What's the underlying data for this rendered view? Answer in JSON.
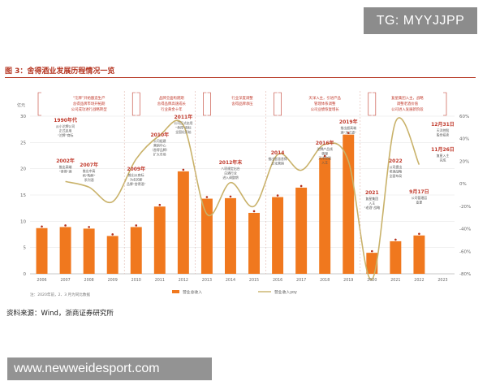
{
  "watermark": "TG: MYYJJPP",
  "figure_title": "图 3：舍得酒业发展历程情况一览",
  "source_note": "资料来源：Wind，浙商证券研究所",
  "footer_url": "www.newweidesport.com",
  "chart_data": {
    "type": "bar",
    "categories": [
      "2006",
      "2007",
      "2008",
      "2009",
      "2010",
      "2011",
      "2012",
      "2013",
      "2014",
      "2015",
      "2016",
      "2017",
      "2018",
      "2019",
      "2020",
      "2021",
      "2022",
      "2023"
    ],
    "series": [
      {
        "name": "营业总收入",
        "type": "bar",
        "color": "#f0781e",
        "values": [
          8.7,
          8.9,
          8.6,
          7.2,
          8.9,
          12.8,
          19.5,
          14.3,
          14.4,
          11.6,
          14.6,
          16.4,
          22.1,
          26.5,
          4.0,
          6.2,
          7.3,
          null
        ]
      },
      {
        "name": "营业收入yoy",
        "type": "line",
        "color": "#c9b26a",
        "values": [
          null,
          2,
          -3,
          -16,
          22,
          43,
          52,
          -27,
          1,
          -20,
          26,
          12,
          35,
          20,
          -85,
          55,
          17,
          null
        ]
      }
    ],
    "ylim_left": [
      0,
      30
    ],
    "yticks_left": [
      "0",
      "5",
      "10",
      "15",
      "20",
      "25",
      "30"
    ],
    "yticks_right": [
      "-80%",
      "-60%",
      "-40%",
      "-20%",
      "0%",
      "20%",
      "40%",
      "60%"
    ],
    "unit_left": "亿元",
    "x_footnote": "注：2020年前，2、3 月为同比数据",
    "legend": [
      "营业总收入",
      "营业收入yoy"
    ],
    "milestones": [
      {
        "year": "1990年代",
        "lines": [
          "从小沱牌公司",
          "正式启用",
          "“沱牌”商标"
        ]
      },
      {
        "year": "2002年",
        "lines": [
          "推出高端",
          "“舍得”酒"
        ]
      },
      {
        "year": "2007年",
        "lines": [
          "推出中高",
          "档“陶醉”",
          "系列酒"
        ]
      },
      {
        "year": "2009年",
        "lines": [
          "推出以商标",
          "为名的新",
          "品牌“舍得酒”"
        ]
      },
      {
        "year": "2010年",
        "lines": [
          "公司组建",
          "营销中心",
          "（舍得品牌）",
          "扩大市场"
        ]
      },
      {
        "year": "2011年",
        "lines": [
          "公司正式启用",
          "“舍得”商标",
          "全国化开始"
        ]
      },
      {
        "year": "2012年末",
        "lines": [
          "八项规定出台",
          "白酒行业",
          "进入调整期"
        ]
      },
      {
        "year": "2014",
        "lines": [
          "推出智慧舍得",
          "文化营销"
        ]
      },
      {
        "year": "2016年",
        "lines": [
          "沱牌产品线",
          "梳理",
          "天洋控股",
          "入主"
        ]
      },
      {
        "year": "2019年",
        "lines": [
          "推出超高端",
          "酒“天之道”"
        ]
      },
      {
        "year": "2021",
        "lines": [
          "复星集团",
          "入主",
          "“老酒”战略"
        ]
      },
      {
        "year": "2022",
        "lines": [
          "公司提出",
          "老酒战略",
          "全面布局"
        ]
      },
      {
        "year": "9月17日",
        "lines": [
          "公司管理层",
          "变更"
        ]
      },
      {
        "year": "11月26日",
        "lines": [
          "复星入主",
          "完成"
        ]
      },
      {
        "year": "12月31日",
        "lines": [
          "天洋控股",
          "股份拍卖"
        ]
      }
    ],
    "phase_notes": [
      {
        "lines": [
          "“沱牌”开始酿造生产",
          "舍得品牌市场开拓期",
          "公司成功进行战略转型"
        ]
      },
      {
        "lines": [
          "品牌全面构建期",
          "舍得品牌高速成长",
          "行业黄金十年"
        ]
      },
      {
        "lines": [
          "行业深度调整",
          "舍得品牌承压"
        ]
      },
      {
        "lines": [
          "天洋入主，引进产品",
          "管理体系调整",
          "公司业绩恢复增长"
        ]
      },
      {
        "lines": [
          "复星集团入主，战略",
          "调整老酒价值",
          "公司进入发展新阶段"
        ]
      }
    ]
  }
}
